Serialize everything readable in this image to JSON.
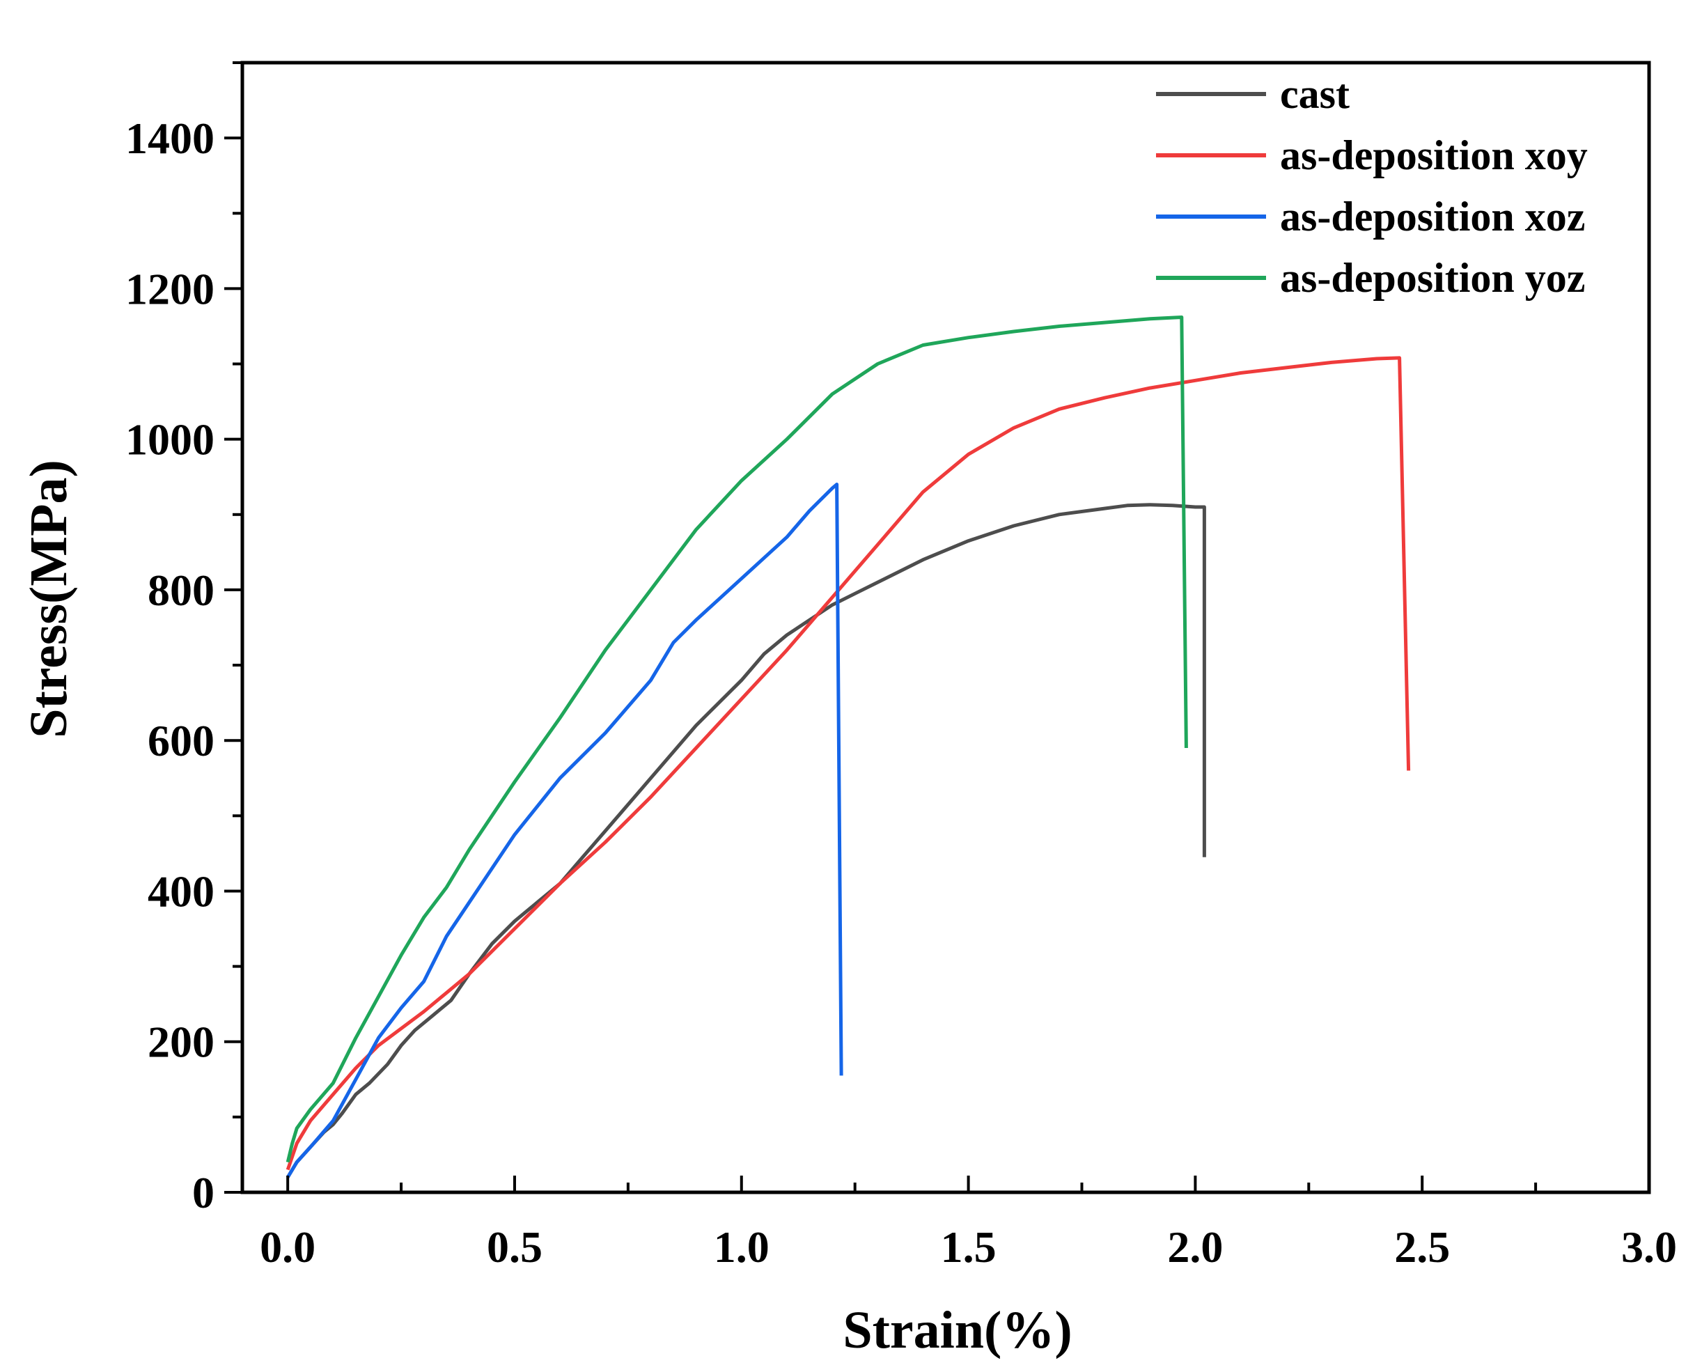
{
  "chart_data": {
    "type": "line",
    "title": "",
    "xlabel": "Strain(%)",
    "ylabel": "Stress(MPa)",
    "xlim": [
      -0.1,
      3.0
    ],
    "ylim": [
      0,
      1500
    ],
    "x_ticks": [
      0.0,
      0.5,
      1.0,
      1.5,
      2.0,
      2.5,
      3.0
    ],
    "x_tick_labels": [
      "0.0",
      "0.5",
      "1.0",
      "1.5",
      "2.0",
      "2.5",
      "3.0"
    ],
    "y_ticks": [
      0,
      200,
      400,
      600,
      800,
      1000,
      1200,
      1400
    ],
    "y_tick_labels": [
      "0",
      "200",
      "400",
      "600",
      "800",
      "1000",
      "1200",
      "1400"
    ],
    "grid": false,
    "legend_position": "top-right",
    "series": [
      {
        "name": "cast",
        "color": "#4d4d4d",
        "x": [
          0.0,
          0.02,
          0.05,
          0.08,
          0.1,
          0.12,
          0.15,
          0.18,
          0.22,
          0.25,
          0.28,
          0.32,
          0.36,
          0.4,
          0.45,
          0.5,
          0.55,
          0.6,
          0.65,
          0.7,
          0.8,
          0.9,
          1.0,
          1.05,
          1.1,
          1.15,
          1.2,
          1.25,
          1.3,
          1.4,
          1.5,
          1.6,
          1.7,
          1.8,
          1.85,
          1.9,
          1.95,
          2.0,
          2.02,
          2.02
        ],
        "y": [
          20,
          40,
          60,
          80,
          90,
          105,
          130,
          145,
          170,
          195,
          215,
          235,
          255,
          290,
          330,
          360,
          385,
          410,
          445,
          480,
          550,
          620,
          680,
          715,
          740,
          760,
          780,
          795,
          810,
          840,
          865,
          885,
          900,
          908,
          912,
          913,
          912,
          910,
          910,
          445
        ]
      },
      {
        "name": "as-deposition xoy",
        "color": "#ef3b3b",
        "x": [
          0.0,
          0.02,
          0.05,
          0.1,
          0.15,
          0.2,
          0.3,
          0.4,
          0.5,
          0.6,
          0.7,
          0.8,
          0.9,
          1.0,
          1.1,
          1.2,
          1.3,
          1.4,
          1.5,
          1.6,
          1.7,
          1.8,
          1.9,
          2.0,
          2.1,
          2.2,
          2.3,
          2.4,
          2.45,
          2.47
        ],
        "y": [
          30,
          65,
          95,
          130,
          165,
          195,
          240,
          290,
          350,
          410,
          465,
          525,
          590,
          655,
          720,
          790,
          860,
          930,
          980,
          1015,
          1040,
          1055,
          1068,
          1078,
          1088,
          1095,
          1102,
          1107,
          1108,
          560
        ]
      },
      {
        "name": "as-deposition xoz",
        "color": "#1565e8",
        "x": [
          0.0,
          0.02,
          0.05,
          0.1,
          0.15,
          0.2,
          0.25,
          0.3,
          0.35,
          0.4,
          0.45,
          0.5,
          0.6,
          0.7,
          0.8,
          0.85,
          0.9,
          1.0,
          1.1,
          1.15,
          1.2,
          1.21,
          1.22
        ],
        "y": [
          20,
          40,
          60,
          95,
          150,
          205,
          245,
          280,
          340,
          385,
          430,
          475,
          550,
          610,
          680,
          730,
          760,
          815,
          870,
          905,
          935,
          940,
          155
        ]
      },
      {
        "name": "as-deposition yoz",
        "color": "#1fa65a",
        "x": [
          0.0,
          0.01,
          0.02,
          0.05,
          0.1,
          0.15,
          0.2,
          0.25,
          0.3,
          0.35,
          0.4,
          0.45,
          0.5,
          0.6,
          0.7,
          0.8,
          0.9,
          1.0,
          1.1,
          1.2,
          1.3,
          1.4,
          1.5,
          1.6,
          1.7,
          1.8,
          1.9,
          1.97,
          1.98
        ],
        "y": [
          40,
          65,
          85,
          110,
          145,
          205,
          260,
          315,
          365,
          405,
          455,
          500,
          545,
          630,
          720,
          800,
          880,
          945,
          1000,
          1060,
          1100,
          1125,
          1135,
          1143,
          1150,
          1155,
          1160,
          1162,
          590
        ]
      }
    ]
  }
}
